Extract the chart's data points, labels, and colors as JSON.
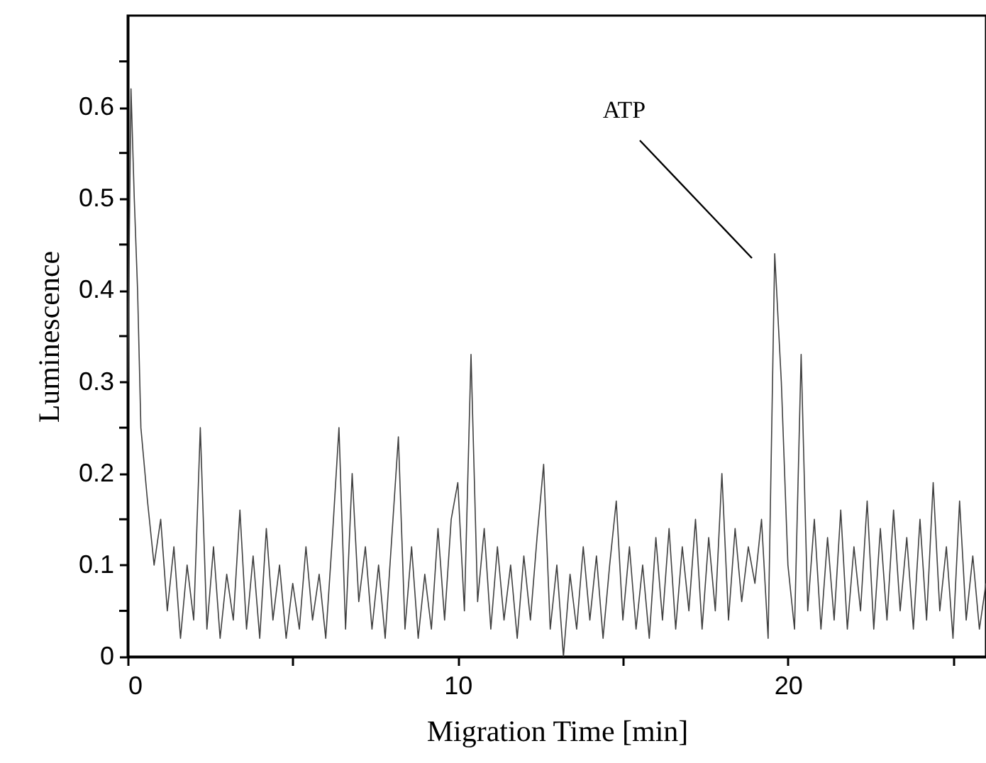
{
  "chart_data": {
    "type": "line",
    "xlabel": "Migration Time [min]",
    "ylabel": "Luminescence",
    "annotations": [
      "ATP"
    ],
    "xlim": [
      0,
      26
    ],
    "ylim": [
      0,
      0.7
    ],
    "xticks": [
      0,
      {
        "value": 5,
        "label": null
      },
      10,
      {
        "value": 15,
        "label": null
      },
      20,
      {
        "value": 25,
        "label": null
      }
    ],
    "yticks": [
      0,
      {
        "value": 0.05,
        "label": null
      },
      0.1,
      {
        "value": 0.15,
        "label": null
      },
      0.2,
      {
        "value": 0.25,
        "label": null
      },
      0.3,
      {
        "value": 0.35,
        "label": null
      },
      0.4,
      {
        "value": 0.45,
        "label": null
      },
      0.5,
      {
        "value": 0.55,
        "label": null
      },
      0.6,
      {
        "value": 0.65,
        "label": null
      }
    ],
    "grid": false,
    "marker": "none",
    "line_style": "solid",
    "series": [
      {
        "color": "#404040",
        "x": [
          0,
          0.1,
          0.2,
          0.3,
          0.4,
          0.6,
          0.8,
          1.0,
          1.2,
          1.4,
          1.6,
          1.8,
          2.0,
          2.2,
          2.4,
          2.6,
          2.8,
          3.0,
          3.2,
          3.4,
          3.6,
          3.8,
          4.0,
          4.2,
          4.4,
          4.6,
          4.8,
          5.0,
          5.2,
          5.4,
          5.6,
          5.8,
          6.0,
          6.2,
          6.4,
          6.6,
          6.8,
          7.0,
          7.2,
          7.4,
          7.6,
          7.8,
          8.0,
          8.2,
          8.4,
          8.6,
          8.8,
          9.0,
          9.2,
          9.4,
          9.6,
          9.8,
          10.0,
          10.2,
          10.4,
          10.6,
          10.8,
          11.0,
          11.2,
          11.4,
          11.6,
          11.8,
          12.0,
          12.2,
          12.4,
          12.6,
          12.8,
          13.0,
          13.2,
          13.4,
          13.6,
          13.8,
          14.0,
          14.2,
          14.4,
          14.6,
          14.8,
          15.0,
          15.2,
          15.4,
          15.6,
          15.8,
          16.0,
          16.2,
          16.4,
          16.6,
          16.8,
          17.0,
          17.2,
          17.4,
          17.6,
          17.8,
          18.0,
          18.2,
          18.4,
          18.6,
          18.8,
          19.0,
          19.2,
          19.4,
          19.6,
          19.8,
          20.0,
          20.2,
          20.4,
          20.6,
          20.8,
          21.0,
          21.2,
          21.4,
          21.6,
          21.8,
          22.0,
          22.2,
          22.4,
          22.6,
          22.8,
          23.0,
          23.2,
          23.4,
          23.6,
          23.8,
          24.0,
          24.2,
          24.4,
          24.6,
          24.8,
          25.0,
          25.2,
          25.4,
          25.6,
          25.8,
          26.0
        ],
        "values": [
          0.3,
          0.62,
          0.5,
          0.4,
          0.25,
          0.17,
          0.1,
          0.15,
          0.05,
          0.12,
          0.02,
          0.1,
          0.04,
          0.25,
          0.03,
          0.12,
          0.02,
          0.09,
          0.04,
          0.16,
          0.03,
          0.11,
          0.02,
          0.14,
          0.04,
          0.1,
          0.02,
          0.08,
          0.03,
          0.12,
          0.04,
          0.09,
          0.02,
          0.13,
          0.25,
          0.03,
          0.2,
          0.06,
          0.12,
          0.03,
          0.1,
          0.02,
          0.13,
          0.24,
          0.03,
          0.12,
          0.02,
          0.09,
          0.03,
          0.14,
          0.04,
          0.15,
          0.19,
          0.05,
          0.33,
          0.06,
          0.14,
          0.03,
          0.12,
          0.04,
          0.1,
          0.02,
          0.11,
          0.04,
          0.13,
          0.21,
          0.03,
          0.1,
          0.0,
          0.09,
          0.03,
          0.12,
          0.04,
          0.11,
          0.02,
          0.1,
          0.17,
          0.04,
          0.12,
          0.03,
          0.1,
          0.02,
          0.13,
          0.04,
          0.14,
          0.03,
          0.12,
          0.05,
          0.15,
          0.03,
          0.13,
          0.05,
          0.2,
          0.04,
          0.14,
          0.06,
          0.12,
          0.08,
          0.15,
          0.02,
          0.44,
          0.3,
          0.1,
          0.03,
          0.33,
          0.05,
          0.15,
          0.03,
          0.13,
          0.04,
          0.16,
          0.03,
          0.12,
          0.05,
          0.17,
          0.03,
          0.14,
          0.04,
          0.16,
          0.05,
          0.13,
          0.03,
          0.15,
          0.04,
          0.19,
          0.05,
          0.12,
          0.02,
          0.17,
          0.04,
          0.11,
          0.03,
          0.08
        ]
      }
    ]
  }
}
